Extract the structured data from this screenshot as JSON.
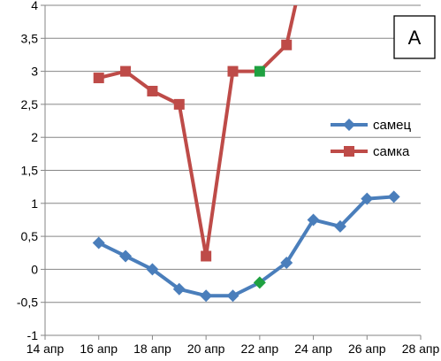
{
  "chart_data": {
    "type": "line",
    "title": "",
    "xlabel": "",
    "ylabel": "",
    "panel_label": "A",
    "ylim": [
      -1,
      4
    ],
    "y_ticks": [
      -1,
      -0.5,
      0,
      0.5,
      1,
      1.5,
      2,
      2.5,
      3,
      3.5,
      4
    ],
    "y_tick_labels": [
      "-1",
      "-0,5",
      "0",
      "0,5",
      "1",
      "1,5",
      "2",
      "2,5",
      "3",
      "3,5",
      "4"
    ],
    "xlim": [
      14,
      28
    ],
    "x_ticks": [
      14,
      16,
      18,
      20,
      22,
      24,
      26,
      28
    ],
    "x_tick_labels": [
      "14 апр",
      "16 апр",
      "18 апр",
      "20 апр",
      "22 апр",
      "24 апр",
      "26 апр",
      "28 апр"
    ],
    "grid": "horizontal",
    "legend": "right",
    "series": [
      {
        "name": "самец",
        "color": "#4a7ebb",
        "marker": "diamond",
        "x": [
          16,
          17,
          18,
          19,
          20,
          21,
          22,
          23,
          24,
          25,
          26,
          27
        ],
        "y": [
          0.4,
          0.2,
          0.0,
          -0.3,
          -0.4,
          -0.4,
          -0.2,
          0.1,
          0.75,
          0.65,
          1.07,
          1.1
        ],
        "highlight_index": 6
      },
      {
        "name": "самка",
        "color": "#be4b48",
        "marker": "square",
        "x": [
          16,
          17,
          18,
          19,
          20,
          21,
          22,
          23,
          23.5
        ],
        "y": [
          2.9,
          3.0,
          2.7,
          2.5,
          0.2,
          3.0,
          3.0,
          3.4,
          4.3
        ],
        "marker_count": 8,
        "highlight_index": 6
      }
    ],
    "highlight_color": "#1fa141"
  }
}
